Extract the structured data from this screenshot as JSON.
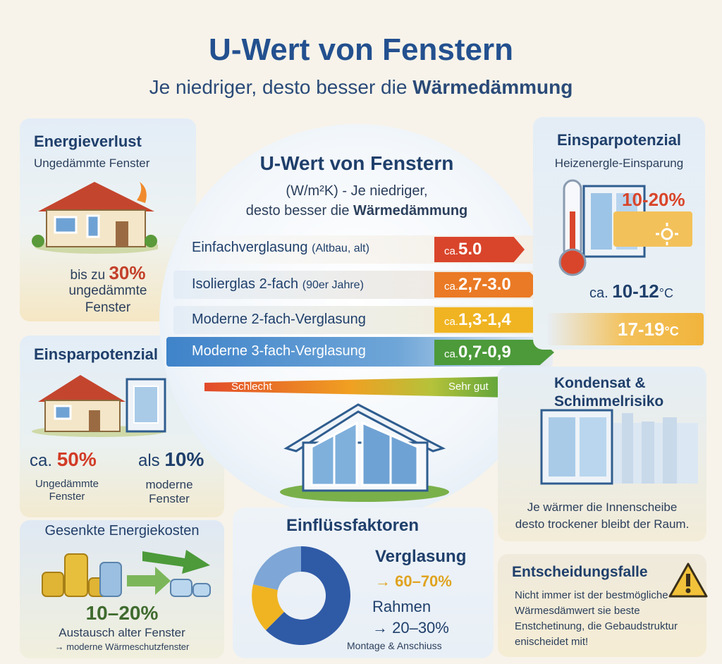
{
  "header": {
    "title": "U-Wert von Fenstern",
    "subtitle_prefix": "Je niedriger, desto besser die ",
    "subtitle_bold": "Wärmedämmung"
  },
  "energy_loss": {
    "title": "Energieverlust",
    "subtitle": "Ungedämmte Fenster",
    "line1_prefix": "bis zu ",
    "line1_value": "30%",
    "line2": "ungedämmte",
    "line3": "Fenster"
  },
  "savings_left": {
    "title": "Einsparpotenzial",
    "left_prefix": "ca. ",
    "left_value": "50%",
    "left_label1": "Ungedämmte",
    "left_label2": "Fenster",
    "right_prefix": "als ",
    "right_value": "10%",
    "right_label1": "moderne",
    "right_label2": "Fenster"
  },
  "costs": {
    "title": "Gesenkte Energiekosten",
    "value": "10–20%",
    "line1": "Austausch alter Fenster",
    "line2": "→ moderne Wärmeschutzfenster"
  },
  "center": {
    "title": "U-Wert von Fenstern",
    "unit_line": "(W/m²K) - Je niedriger,",
    "line2_prefix": "desto besser die ",
    "line2_bold": "Wärmedämmung",
    "rows": [
      {
        "label": "Einfachverglasung",
        "note": "(Altbau, alt)",
        "prefix": "ca.",
        "value": "5.0",
        "color": "#d9452b"
      },
      {
        "label": "Isolierglas 2-fach",
        "note": "(90er Jahre)",
        "prefix": "ca.",
        "value": "2,7-3.0",
        "color": "#ea7a25"
      },
      {
        "label": "Moderne 2-fach-Verglasung",
        "note": "",
        "prefix": "ca.",
        "value": "1,3-1,4",
        "color": "#f0b422"
      },
      {
        "label": "Moderne 3-fach-Verglasung",
        "note": "",
        "prefix": "ca.",
        "value": "0,7-0,9",
        "color": "#4c9a3a"
      }
    ],
    "scale_bad": "Schlecht",
    "scale_good": "Sehr gut"
  },
  "savings_right": {
    "title": "Einsparpotenzial",
    "subtitle": "Heizenergle-Einsparung",
    "value1": "10-20%",
    "value2_prefix": "ca. ",
    "value2": "10-12",
    "value2_unit": "°C",
    "value3": "17-19",
    "value3_unit": "°C"
  },
  "condensation": {
    "title1": "Kondensat &",
    "title2": "Schimmelrisiko",
    "text1": "Je wärmer die Innenscheibe",
    "text2": "desto trockener bleibt der Raum."
  },
  "factors": {
    "title": "Einflüssfaktoren",
    "item1_label": "Verglasung",
    "item1_value": "→ 60–70%",
    "item2_label": "Rahmen",
    "item2_value": "→ 20–30%",
    "item3_label": "Montage & Anschiuss"
  },
  "decision": {
    "title": "Entscheidungsfalle",
    "line1": "Nicht immer ist der bestmögliche",
    "line2": "Wärmesdämwert sie beste",
    "line3": "Enstchetinung, die Gebaudstruktur",
    "line4": "enischeidet mit!"
  },
  "colors": {
    "title": "#23508f",
    "red": "#d9452b",
    "orange": "#ea7a25",
    "yellow": "#f0b422",
    "green": "#4c9a3a",
    "blue": "#2f6fb3"
  }
}
